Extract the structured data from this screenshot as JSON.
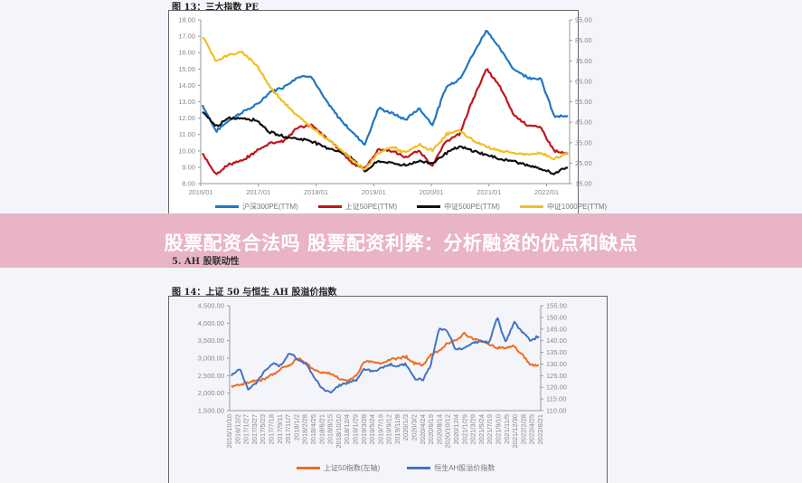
{
  "banner": {
    "title": "股票配资合法吗 股票配资利弊：分析融资的优点和缺点"
  },
  "section_heading": "5. AH 股联动性",
  "chart_data": [
    {
      "type": "line",
      "title": "图 13：三大指数 PE",
      "xlabel": "",
      "ylabel": "",
      "x_ticks": [
        "2016/01",
        "2017/01",
        "2018/01",
        "2019/01",
        "2020/01",
        "2021/01",
        "2022/01"
      ],
      "y_left_ticks": [
        "18.00",
        "17.00",
        "16.00",
        "15.00",
        "14.00",
        "13.00",
        "12.00",
        "11.00",
        "10.00",
        "9.00",
        "8.00"
      ],
      "y_left_range": [
        8,
        18
      ],
      "y_right_ticks": [
        "95.00",
        "85.00",
        "75.00",
        "65.00",
        "55.00",
        "45.00",
        "35.00",
        "25.00",
        "15.00"
      ],
      "y_right_range": [
        15,
        95
      ],
      "grid": false,
      "legend_position": "bottom",
      "series": [
        {
          "name": "沪深300PE(TTM)",
          "axis": "left",
          "color": "#1f77c4",
          "x": [
            "2016/01",
            "2016/04",
            "2016/07",
            "2016/10",
            "2017/01",
            "2017/04",
            "2017/07",
            "2017/10",
            "2018/01",
            "2018/04",
            "2018/07",
            "2018/10",
            "2019/01",
            "2019/04",
            "2019/07",
            "2019/10",
            "2020/01",
            "2020/04",
            "2020/07",
            "2020/10",
            "2021/01",
            "2021/02",
            "2021/04",
            "2021/07",
            "2021/10",
            "2022/01",
            "2022/04",
            "2022/06"
          ],
          "values": [
            12.8,
            11.2,
            11.9,
            12.4,
            12.8,
            13.6,
            13.9,
            14.5,
            14.6,
            13.2,
            12.1,
            11.2,
            10.4,
            12.6,
            12.3,
            11.9,
            12.6,
            11.6,
            13.9,
            14.4,
            15.9,
            17.4,
            16.2,
            15.0,
            14.5,
            14.4,
            12.1,
            12.1
          ]
        },
        {
          "name": "上证50PE(TTM)",
          "axis": "left",
          "color": "#c0161b",
          "x": [
            "2016/01",
            "2016/04",
            "2016/07",
            "2016/10",
            "2017/01",
            "2017/04",
            "2017/07",
            "2017/10",
            "2018/01",
            "2018/04",
            "2018/07",
            "2018/10",
            "2019/01",
            "2019/04",
            "2019/07",
            "2019/10",
            "2020/01",
            "2020/04",
            "2020/07",
            "2020/10",
            "2021/01",
            "2021/02",
            "2021/04",
            "2021/07",
            "2021/10",
            "2022/01",
            "2022/04",
            "2022/06"
          ],
          "values": [
            9.8,
            8.6,
            9.2,
            9.4,
            10.0,
            10.5,
            10.6,
            11.4,
            11.6,
            10.9,
            10.2,
            9.3,
            8.9,
            10.1,
            10.0,
            9.6,
            10.0,
            9.1,
            10.6,
            11.0,
            13.2,
            15.0,
            13.9,
            12.2,
            11.6,
            11.4,
            10.0,
            9.8
          ]
        },
        {
          "name": "中证500PE(TTM)",
          "axis": "right",
          "color": "#111111",
          "x": [
            "2016/01",
            "2016/04",
            "2016/07",
            "2016/10",
            "2017/01",
            "2017/04",
            "2017/07",
            "2017/10",
            "2018/01",
            "2018/04",
            "2018/07",
            "2018/10",
            "2019/01",
            "2019/04",
            "2019/07",
            "2019/10",
            "2020/01",
            "2020/04",
            "2020/07",
            "2020/10",
            "2021/01",
            "2021/02",
            "2021/04",
            "2021/07",
            "2021/10",
            "2022/01",
            "2022/04",
            "2022/06"
          ],
          "values": [
            50,
            43,
            47,
            47,
            46,
            40,
            38,
            37,
            36,
            33,
            31,
            28,
            21,
            26,
            25,
            24,
            26,
            25,
            30,
            33,
            31,
            29,
            27,
            26,
            24,
            22,
            20,
            23
          ]
        },
        {
          "name": "中证1000PE(TTM)",
          "axis": "right",
          "color": "#f2bf22",
          "x": [
            "2016/01",
            "2016/04",
            "2016/07",
            "2016/10",
            "2017/01",
            "2017/04",
            "2017/07",
            "2017/10",
            "2018/01",
            "2018/04",
            "2018/07",
            "2018/10",
            "2019/01",
            "2019/04",
            "2019/07",
            "2019/10",
            "2020/01",
            "2020/04",
            "2020/07",
            "2020/10",
            "2021/01",
            "2021/02",
            "2021/04",
            "2021/07",
            "2021/10",
            "2022/01",
            "2022/04",
            "2022/06"
          ],
          "values": [
            87,
            75,
            78,
            79,
            73,
            62,
            55,
            48,
            43,
            38,
            33,
            27,
            22,
            30,
            33,
            30,
            34,
            31,
            39,
            41,
            36,
            33,
            31,
            30,
            29,
            30,
            27,
            30
          ]
        }
      ]
    },
    {
      "type": "line",
      "title": "图 14：上证 50 与恒生 AH 股溢价指数",
      "xlabel": "",
      "ylabel": "",
      "x_ticks": [
        "2016/10/10",
        "2016/12/2",
        "2017/1/27",
        "2017/3/27",
        "2017/5/23",
        "2017/7/18",
        "2017/9/11",
        "2017/11/7",
        "2018/1/2",
        "2018/2/28",
        "2018/4/25",
        "2018/6/21",
        "2018/8/15",
        "2018/10/10",
        "2018/12/4",
        "2019/1/29",
        "2019/3/28",
        "2019/5/24",
        "2019/7/19",
        "2019/9/12",
        "2019/11/8",
        "2020/1/3",
        "2020/3/2",
        "2020/4/24",
        "2020/6/19",
        "2020/8/14",
        "2020/10/12",
        "2020/12/4",
        "2021/1/29",
        "2021/3/29",
        "2021/5/24",
        "2021/7/19",
        "2021/9/10",
        "2021/11/5",
        "2021/12/30",
        "2022/2/28",
        "2022/4/25",
        "2022/6/21"
      ],
      "y_left_ticks": [
        "4,500.00",
        "4,000.00",
        "3,500.00",
        "3,000.00",
        "2,500.00",
        "2,000.00",
        "1,500.00"
      ],
      "y_left_range": [
        1500,
        4500
      ],
      "y_right_ticks": [
        "155.00",
        "150.00",
        "145.00",
        "140.00",
        "135.00",
        "130.00",
        "125.00",
        "120.00",
        "115.00",
        "110.00"
      ],
      "y_right_range": [
        110,
        155
      ],
      "grid": false,
      "legend_position": "bottom",
      "series": [
        {
          "name": "上证50指数(左轴)",
          "axis": "left",
          "color": "#f26b1d",
          "values": [
            2200,
            2250,
            2300,
            2350,
            2400,
            2550,
            2700,
            2800,
            3000,
            2850,
            2650,
            2600,
            2550,
            2400,
            2350,
            2500,
            2900,
            2900,
            2850,
            2950,
            3000,
            3050,
            2850,
            2800,
            3100,
            3200,
            3450,
            3500,
            3700,
            3550,
            3500,
            3400,
            3300,
            3300,
            3350,
            3100,
            2800,
            2800
          ]
        },
        {
          "name": "恒生AH股溢价指数",
          "axis": "right",
          "color": "#4472c4",
          "values": [
            125,
            128,
            119,
            122,
            127,
            130,
            129,
            135,
            132,
            130,
            124,
            119,
            118,
            121,
            122,
            123,
            128,
            127,
            128,
            130,
            129,
            130,
            124,
            123,
            130,
            145,
            144,
            136,
            137,
            139,
            140,
            139,
            150,
            139,
            148,
            144,
            140,
            142
          ]
        }
      ]
    }
  ]
}
